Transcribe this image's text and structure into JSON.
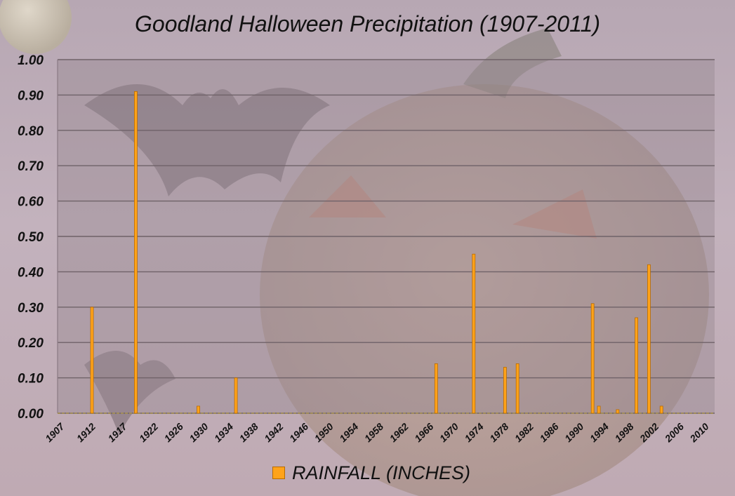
{
  "chart_data": {
    "type": "bar",
    "title": "Goodland Halloween Precipitation (1907-2011)",
    "xlabel": "",
    "ylabel": "",
    "ylim": [
      0,
      1.0
    ],
    "yticks": [
      "0.00",
      "0.10",
      "0.20",
      "0.30",
      "0.40",
      "0.50",
      "0.60",
      "0.70",
      "0.80",
      "0.90",
      "1.00"
    ],
    "xtick_labels": [
      "1907",
      "1912",
      "1917",
      "1922",
      "1926",
      "1930",
      "1934",
      "1938",
      "1942",
      "1946",
      "1950",
      "1954",
      "1958",
      "1962",
      "1966",
      "1970",
      "1974",
      "1978",
      "1982",
      "1986",
      "1990",
      "1994",
      "1998",
      "2002",
      "2006",
      "2010"
    ],
    "grid": true,
    "legend_position": "bottom",
    "series": [
      {
        "name": "RAINFALL (INCHES)",
        "color": "#ffa31a",
        "points": [
          {
            "x": 1912,
            "y": 0.3
          },
          {
            "x": 1919,
            "y": 0.91
          },
          {
            "x": 1929,
            "y": 0.02
          },
          {
            "x": 1935,
            "y": 0.1
          },
          {
            "x": 1967,
            "y": 0.14
          },
          {
            "x": 1973,
            "y": 0.45
          },
          {
            "x": 1978,
            "y": 0.13
          },
          {
            "x": 1980,
            "y": 0.14
          },
          {
            "x": 1992,
            "y": 0.31
          },
          {
            "x": 1993,
            "y": 0.02
          },
          {
            "x": 1996,
            "y": 0.01
          },
          {
            "x": 1999,
            "y": 0.27
          },
          {
            "x": 2001,
            "y": 0.42
          },
          {
            "x": 2003,
            "y": 0.02
          }
        ]
      }
    ]
  },
  "theme": {
    "bar_color": "#ffa31a",
    "bar_edge": "#b86a00",
    "plot_bg": "#9a8a92",
    "grid_color": "#6f6268"
  }
}
